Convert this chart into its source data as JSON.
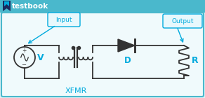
{
  "bg_color": "#dff0f5",
  "border_color": "#4ab8cc",
  "title_text": "testbook",
  "title_color": "#00aadd",
  "xfmr_label": "XFMR",
  "input_label": "Input",
  "output_label": "Output",
  "v_label": "V",
  "d_label": "D",
  "r_label": "R",
  "label_bg": "#e8f8fc",
  "label_border": "#00aadd",
  "wire_color": "#333333",
  "component_color": "#333333",
  "cyan_color": "#00aadd",
  "circuit_bg": "#f0fafc",
  "top_bar_color": "#4ab8cc"
}
